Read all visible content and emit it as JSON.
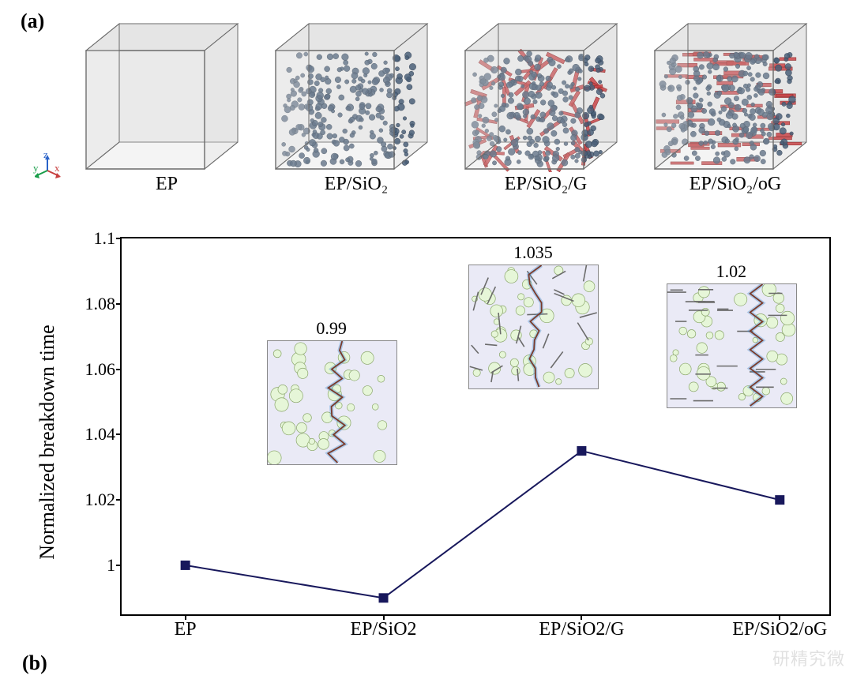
{
  "panel_a": {
    "label": "(a)",
    "axes": {
      "y": "y",
      "z": "z",
      "x": "x"
    },
    "cubes": [
      {
        "caption": "EP",
        "spheres": false,
        "plates": false,
        "oriented": false
      },
      {
        "caption": "EP/SiO₂",
        "spheres": true,
        "plates": false,
        "oriented": false
      },
      {
        "caption": "EP/SiO₂/G",
        "spheres": true,
        "plates": true,
        "oriented": false
      },
      {
        "caption": "EP/SiO₂/oG",
        "spheres": true,
        "plates": true,
        "oriented": true
      }
    ],
    "colors": {
      "cube_edge": "#6a6a6a",
      "cube_face": "#d4d4d4",
      "cube_face_opacity": 0.45,
      "sphere_fill": "#4a5f78",
      "sphere_stroke": "#2c3a4b",
      "plate_fill": "#c84448",
      "plate_stroke": "#8a2a2a"
    }
  },
  "panel_b": {
    "label": "(b)",
    "y_axis_label": "Normalized breakdown time",
    "ylim": [
      0.985,
      1.1
    ],
    "yticks": [
      1,
      1.02,
      1.04,
      1.06,
      1.08,
      1.1
    ],
    "ytick_labels": [
      "1",
      "1.02",
      "1.04",
      "1.06",
      "1.08",
      "1.1"
    ],
    "categories": [
      "EP",
      "EP/SiO2",
      "EP/SiO2/G",
      "EP/SiO2/oG"
    ],
    "values": [
      1.0,
      0.99,
      1.035,
      1.02
    ],
    "annotations": [
      null,
      "0.99",
      "1.035",
      "1.02"
    ],
    "marker_color": "#18185c",
    "marker_size": 12,
    "line_color": "#18185c",
    "line_width": 2,
    "background": "#ffffff",
    "x_positions_pct": [
      9,
      37,
      65,
      93
    ],
    "insets": [
      {
        "for_index": 1,
        "left_pct": 20.5,
        "top_pct": 27,
        "has_lines": false,
        "oriented": false
      },
      {
        "for_index": 2,
        "left_pct": 49,
        "top_pct": 7,
        "has_lines": true,
        "oriented": false
      },
      {
        "for_index": 3,
        "left_pct": 77,
        "top_pct": 12,
        "has_lines": true,
        "oriented": true
      }
    ],
    "inset_colors": {
      "bg": "#eaeaf6",
      "circle_fill": "#e6f6d8",
      "circle_stroke": "#8aa66a",
      "segment": "#6a6a6a",
      "crack": "#7a3a2a",
      "crack_glow": "#3a8acf"
    }
  },
  "watermark": "研精究微"
}
